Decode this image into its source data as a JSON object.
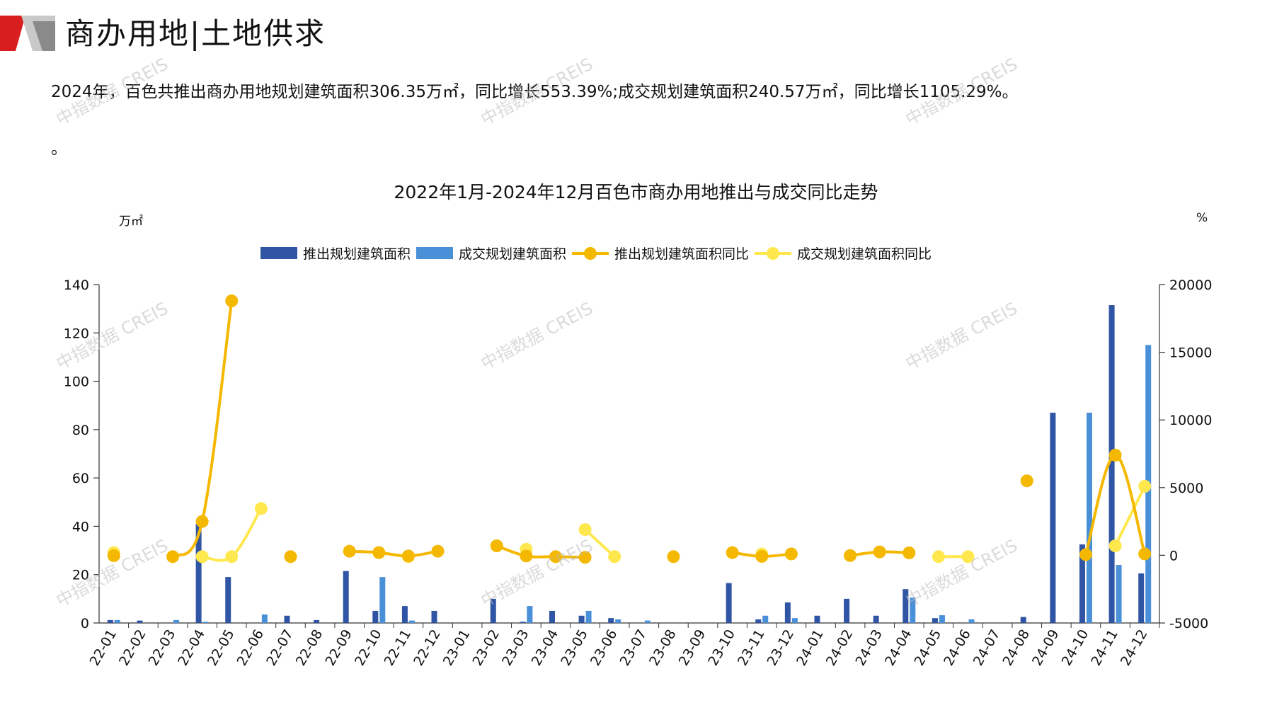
{
  "header": {
    "title": "商办用地|土地供求"
  },
  "summary": {
    "line1": "2024年，百色共推出商办用地规划建筑面积306.35万㎡，同比增长553.39%;成交规划建筑面积240.57万㎡，同比增长1105.29%。",
    "line2": "。"
  },
  "watermark": "中指数据 CREIS",
  "colors": {
    "bar_supply": "#2f55a4",
    "bar_deal": "#4a90d9",
    "line_supply": "#f5b800",
    "line_deal": "#ffe84d"
  },
  "chart_data": {
    "type": "bar",
    "title": "2022年1月-2024年12月百色市商办用地推出与成交同比走势",
    "ylabel_left": "万㎡",
    "ylabel_right": "%",
    "ylim_left": [
      0,
      140
    ],
    "ylim_right": [
      -5000,
      20000
    ],
    "yticks_left": [
      "0",
      "20",
      "40",
      "60",
      "80",
      "100",
      "120",
      "140"
    ],
    "yticks_right": [
      "-5000",
      "0",
      "5000",
      "10000",
      "15000",
      "20000"
    ],
    "legend_position": "top",
    "categories": [
      "22-01",
      "22-02",
      "22-03",
      "22-04",
      "22-05",
      "22-06",
      "22-07",
      "22-08",
      "22-09",
      "22-10",
      "22-11",
      "22-12",
      "23-01",
      "23-02",
      "23-03",
      "23-04",
      "23-05",
      "23-06",
      "23-07",
      "23-08",
      "23-09",
      "23-10",
      "23-11",
      "23-12",
      "24-01",
      "24-02",
      "24-03",
      "24-04",
      "24-05",
      "24-06",
      "24-07",
      "24-08",
      "24-09",
      "24-10",
      "24-11",
      "24-12"
    ],
    "series": [
      {
        "name": "推出规划建筑面积",
        "kind": "bar",
        "axis": "left",
        "values": [
          1.2,
          1.0,
          0,
          41,
          19,
          0,
          3,
          1.2,
          21.5,
          5,
          7,
          5,
          0,
          10,
          0.5,
          5,
          3,
          2,
          0,
          0,
          0,
          16.5,
          1.5,
          8.5,
          3,
          10,
          3,
          14,
          2,
          0,
          0,
          2.5,
          87,
          32.5,
          131.5,
          20.5
        ]
      },
      {
        "name": "成交规划建筑面积",
        "kind": "bar",
        "axis": "left",
        "values": [
          1.2,
          0,
          1.2,
          0.5,
          0,
          3.5,
          0,
          0,
          0,
          19,
          1,
          0,
          0,
          0,
          7,
          0,
          5,
          1.5,
          1,
          0,
          0,
          0,
          3,
          2,
          0,
          0,
          0,
          10.5,
          3.2,
          1.5,
          0,
          0,
          0,
          87,
          24,
          115
        ]
      },
      {
        "name": "推出规划建筑面积同比",
        "kind": "line",
        "axis": "right",
        "values": [
          -30,
          null,
          -100,
          2500,
          18800,
          null,
          -100,
          null,
          300,
          200,
          -50,
          300,
          null,
          700,
          -50,
          -100,
          -150,
          null,
          null,
          -100,
          null,
          200,
          -80,
          100,
          null,
          -20,
          250,
          180,
          null,
          null,
          null,
          5500,
          null,
          50,
          7400,
          100
        ]
      },
      {
        "name": "成交规划建筑面积同比",
        "kind": "line",
        "axis": "right",
        "values": [
          200,
          null,
          null,
          -100,
          -100,
          3450,
          null,
          null,
          null,
          200,
          -100,
          null,
          null,
          null,
          450,
          null,
          1900,
          -100,
          null,
          null,
          null,
          null,
          100,
          null,
          null,
          null,
          null,
          null,
          -100,
          -100,
          null,
          null,
          null,
          null,
          700,
          5100
        ]
      }
    ]
  }
}
